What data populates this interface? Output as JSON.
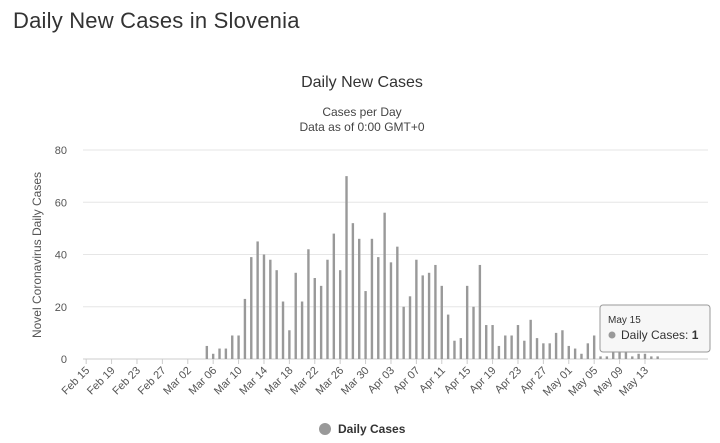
{
  "page": {
    "heading": "Daily New Cases in Slovenia"
  },
  "chart_data": {
    "type": "bar",
    "title": "Daily New Cases",
    "subtitle_lines": [
      "Cases per Day",
      "Data as of 0:00 GMT+0"
    ],
    "ylabel": "Novel Coronavirus Daily Cases",
    "xlabel": "",
    "ylim": [
      0,
      80
    ],
    "yticks": [
      0,
      20,
      40,
      60,
      80
    ],
    "grid": true,
    "legend_position": "bottom-center",
    "categories": [
      "Feb 15",
      "Feb 16",
      "Feb 17",
      "Feb 18",
      "Feb 19",
      "Feb 20",
      "Feb 21",
      "Feb 22",
      "Feb 23",
      "Feb 24",
      "Feb 25",
      "Feb 26",
      "Feb 27",
      "Feb 28",
      "Feb 29",
      "Mar 01",
      "Mar 02",
      "Mar 03",
      "Mar 04",
      "Mar 05",
      "Mar 06",
      "Mar 07",
      "Mar 08",
      "Mar 09",
      "Mar 10",
      "Mar 11",
      "Mar 12",
      "Mar 13",
      "Mar 14",
      "Mar 15",
      "Mar 16",
      "Mar 17",
      "Mar 18",
      "Mar 19",
      "Mar 20",
      "Mar 21",
      "Mar 22",
      "Mar 23",
      "Mar 24",
      "Mar 25",
      "Mar 26",
      "Mar 27",
      "Mar 28",
      "Mar 29",
      "Mar 30",
      "Mar 31",
      "Apr 01",
      "Apr 02",
      "Apr 03",
      "Apr 04",
      "Apr 05",
      "Apr 06",
      "Apr 07",
      "Apr 08",
      "Apr 09",
      "Apr 10",
      "Apr 11",
      "Apr 12",
      "Apr 13",
      "Apr 14",
      "Apr 15",
      "Apr 16",
      "Apr 17",
      "Apr 18",
      "Apr 19",
      "Apr 20",
      "Apr 21",
      "Apr 22",
      "Apr 23",
      "Apr 24",
      "Apr 25",
      "Apr 26",
      "Apr 27",
      "Apr 28",
      "Apr 29",
      "Apr 30",
      "May 01",
      "May 02",
      "May 03",
      "May 04",
      "May 05",
      "May 06",
      "May 07",
      "May 08",
      "May 09",
      "May 10",
      "May 11",
      "May 12",
      "May 13",
      "May 14",
      "May 15"
    ],
    "x_tick_labels": [
      "Feb 15",
      "Feb 19",
      "Feb 23",
      "Feb 27",
      "Mar 02",
      "Mar 06",
      "Mar 10",
      "Mar 14",
      "Mar 18",
      "Mar 22",
      "Mar 26",
      "Mar 30",
      "Apr 03",
      "Apr 07",
      "Apr 11",
      "Apr 15",
      "Apr 19",
      "Apr 23",
      "Apr 27",
      "May 01",
      "May 05",
      "May 09",
      "May 13"
    ],
    "series": [
      {
        "name": "Daily Cases",
        "color": "#999999",
        "values": [
          0,
          0,
          0,
          0,
          0,
          0,
          0,
          0,
          0,
          0,
          0,
          0,
          0,
          0,
          0,
          0,
          0,
          0,
          0,
          5,
          2,
          4,
          4,
          9,
          9,
          23,
          39,
          45,
          40,
          38,
          34,
          22,
          11,
          33,
          22,
          42,
          31,
          28,
          38,
          48,
          34,
          70,
          52,
          46,
          26,
          46,
          39,
          56,
          37,
          43,
          20,
          24,
          38,
          32,
          33,
          36,
          28,
          17,
          7,
          8,
          28,
          20,
          36,
          13,
          13,
          5,
          9,
          9,
          13,
          7,
          15,
          8,
          6,
          6,
          10,
          11,
          5,
          4,
          2,
          6,
          9,
          1,
          1,
          3,
          3,
          3,
          1,
          2,
          2,
          1,
          1
        ]
      }
    ],
    "tooltip": {
      "date": "May 15",
      "label": "Daily Cases:",
      "value": "1"
    }
  }
}
